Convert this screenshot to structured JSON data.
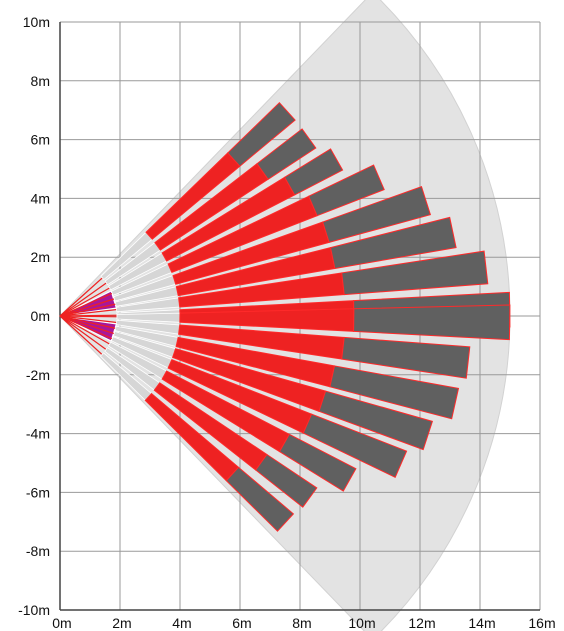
{
  "chart_data": {
    "type": "diagram",
    "x_unit": "m",
    "y_unit": "m",
    "xlim": [
      0,
      16
    ],
    "ylim": [
      -10,
      10
    ],
    "grid": true,
    "x_ticks": [
      {
        "value": 0,
        "label": "0m"
      },
      {
        "value": 2,
        "label": "2m"
      },
      {
        "value": 4,
        "label": "4m"
      },
      {
        "value": 6,
        "label": "6m"
      },
      {
        "value": 8,
        "label": "8m"
      },
      {
        "value": 10,
        "label": "10m"
      },
      {
        "value": 12,
        "label": "12m"
      },
      {
        "value": 14,
        "label": "14m"
      },
      {
        "value": 16,
        "label": "16m"
      }
    ],
    "y_ticks": [
      {
        "value": 10,
        "label": "10m"
      },
      {
        "value": 8,
        "label": "8m"
      },
      {
        "value": 6,
        "label": "6m"
      },
      {
        "value": 4,
        "label": "4m"
      },
      {
        "value": 2,
        "label": "2m"
      },
      {
        "value": 0,
        "label": "0m"
      },
      {
        "value": -2,
        "label": "-2m"
      },
      {
        "value": -4,
        "label": "-4m"
      },
      {
        "value": -6,
        "label": "-6m"
      },
      {
        "value": -8,
        "label": "-8m"
      },
      {
        "value": -10,
        "label": "-10m"
      }
    ],
    "coverage_area": {
      "reach": 15,
      "half_angle_deg": 46,
      "color": "#e3e3e3"
    },
    "beams": [
      {
        "angle_deg": 42.0,
        "start": 4.0,
        "split": 7.8,
        "end": 10.2
      },
      {
        "angle_deg": 35.5,
        "start": 4.0,
        "split": 8.3,
        "end": 10.2
      },
      {
        "angle_deg": 29.5,
        "start": 4.0,
        "split": 8.8,
        "end": 10.6
      },
      {
        "angle_deg": 23.5,
        "start": 4.0,
        "split": 9.2,
        "end": 11.6
      },
      {
        "angle_deg": 17.5,
        "start": 4.0,
        "split": 9.3,
        "end": 12.8
      },
      {
        "angle_deg": 12.0,
        "start": 4.0,
        "split": 9.3,
        "end": 13.4
      },
      {
        "angle_deg": 6.5,
        "start": 4.0,
        "split": 9.5,
        "end": 14.3
      },
      {
        "angle_deg": 0.8,
        "start": 4.0,
        "split": 9.8,
        "end": 15.0
      },
      {
        "angle_deg": -0.8,
        "start": 4.0,
        "split": 9.8,
        "end": 15.0
      },
      {
        "angle_deg": -6.5,
        "start": 4.0,
        "split": 9.5,
        "end": 13.7
      },
      {
        "angle_deg": -12.5,
        "start": 4.0,
        "split": 9.3,
        "end": 13.5
      },
      {
        "angle_deg": -18.0,
        "start": 4.0,
        "split": 9.2,
        "end": 12.9
      },
      {
        "angle_deg": -23.5,
        "start": 4.0,
        "split": 9.0,
        "end": 12.4
      },
      {
        "angle_deg": -29.5,
        "start": 4.0,
        "split": 8.6,
        "end": 11.1
      },
      {
        "angle_deg": -36.0,
        "start": 4.0,
        "split": 8.3,
        "end": 10.3
      },
      {
        "angle_deg": -42.5,
        "start": 4.0,
        "split": 7.8,
        "end": 10.2
      }
    ],
    "near_zones": [
      {
        "angle_from_deg": 8,
        "angle_to_deg": 26,
        "reach": 1.9
      },
      {
        "angle_from_deg": -8,
        "angle_to_deg": -26,
        "reach": 1.9
      }
    ],
    "colors": {
      "near_red": "#ee2222",
      "far_gray": "#606060",
      "beam_outline": "#ff2a2a",
      "near_zone": "#a8179a",
      "grid": "#9a9a9a",
      "axis": "#444444"
    }
  }
}
